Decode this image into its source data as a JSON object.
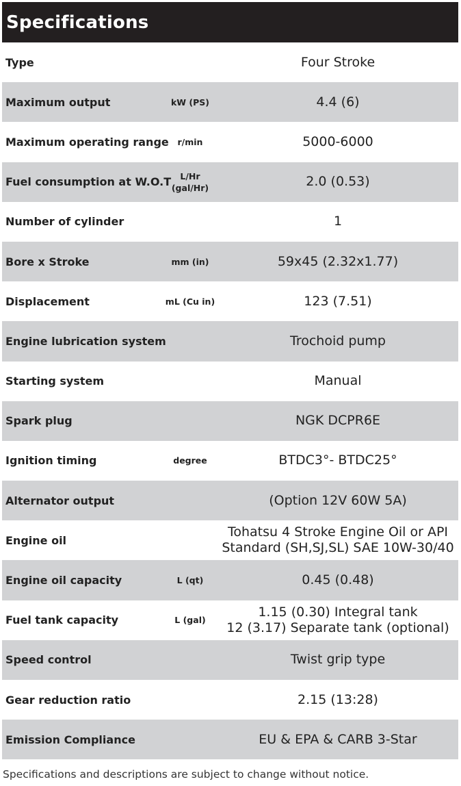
{
  "title": "Specifications",
  "rows": [
    {
      "label": "Type",
      "unit": "",
      "value": "Four Stroke"
    },
    {
      "label": "Maximum output",
      "unit": "kW (PS)",
      "value": "4.4 (6)"
    },
    {
      "label": "Maximum operating range",
      "unit": "r/min",
      "value": "5000-6000"
    },
    {
      "label": "Fuel consumption at W.O.T",
      "unit": "L/Hr\n(gal/Hr)",
      "value": "2.0 (0.53)"
    },
    {
      "label": "Number of cylinder",
      "unit": "",
      "value": "1"
    },
    {
      "label": "Bore x Stroke",
      "unit": "mm (in)",
      "value": "59x45 (2.32x1.77)"
    },
    {
      "label": "Displacement",
      "unit": "mL (Cu in)",
      "value": "123 (7.51)"
    },
    {
      "label": "Engine lubrication system",
      "unit": "",
      "value": "Trochoid pump"
    },
    {
      "label": "Starting system",
      "unit": "",
      "value": "Manual"
    },
    {
      "label": "Spark plug",
      "unit": "",
      "value": "NGK DCPR6E"
    },
    {
      "label": "Ignition timing",
      "unit": "degree",
      "value": "BTDC3°- BTDC25°"
    },
    {
      "label": "Alternator output",
      "unit": "",
      "value": "(Option 12V 60W 5A)"
    },
    {
      "label": "Engine oil",
      "unit": "",
      "value": "Tohatsu 4 Stroke Engine Oil or API\nStandard (SH,SJ,SL) SAE 10W-30/40"
    },
    {
      "label": "Engine oil capacity",
      "unit": "L (qt)",
      "value": "0.45 (0.48)"
    },
    {
      "label": "Fuel tank capacity",
      "unit": "L (gal)",
      "value": "1.15 (0.30) Integral tank\n12 (3.17) Separate tank (optional)"
    },
    {
      "label": "Speed control",
      "unit": "",
      "value": "Twist grip type"
    },
    {
      "label": "Gear reduction ratio",
      "unit": "",
      "value": "2.15 (13:28)"
    },
    {
      "label": "Emission Compliance",
      "unit": "",
      "value": "EU & EPA & CARB 3-Star"
    }
  ],
  "note": "Specifications and descriptions are subject to change without notice."
}
